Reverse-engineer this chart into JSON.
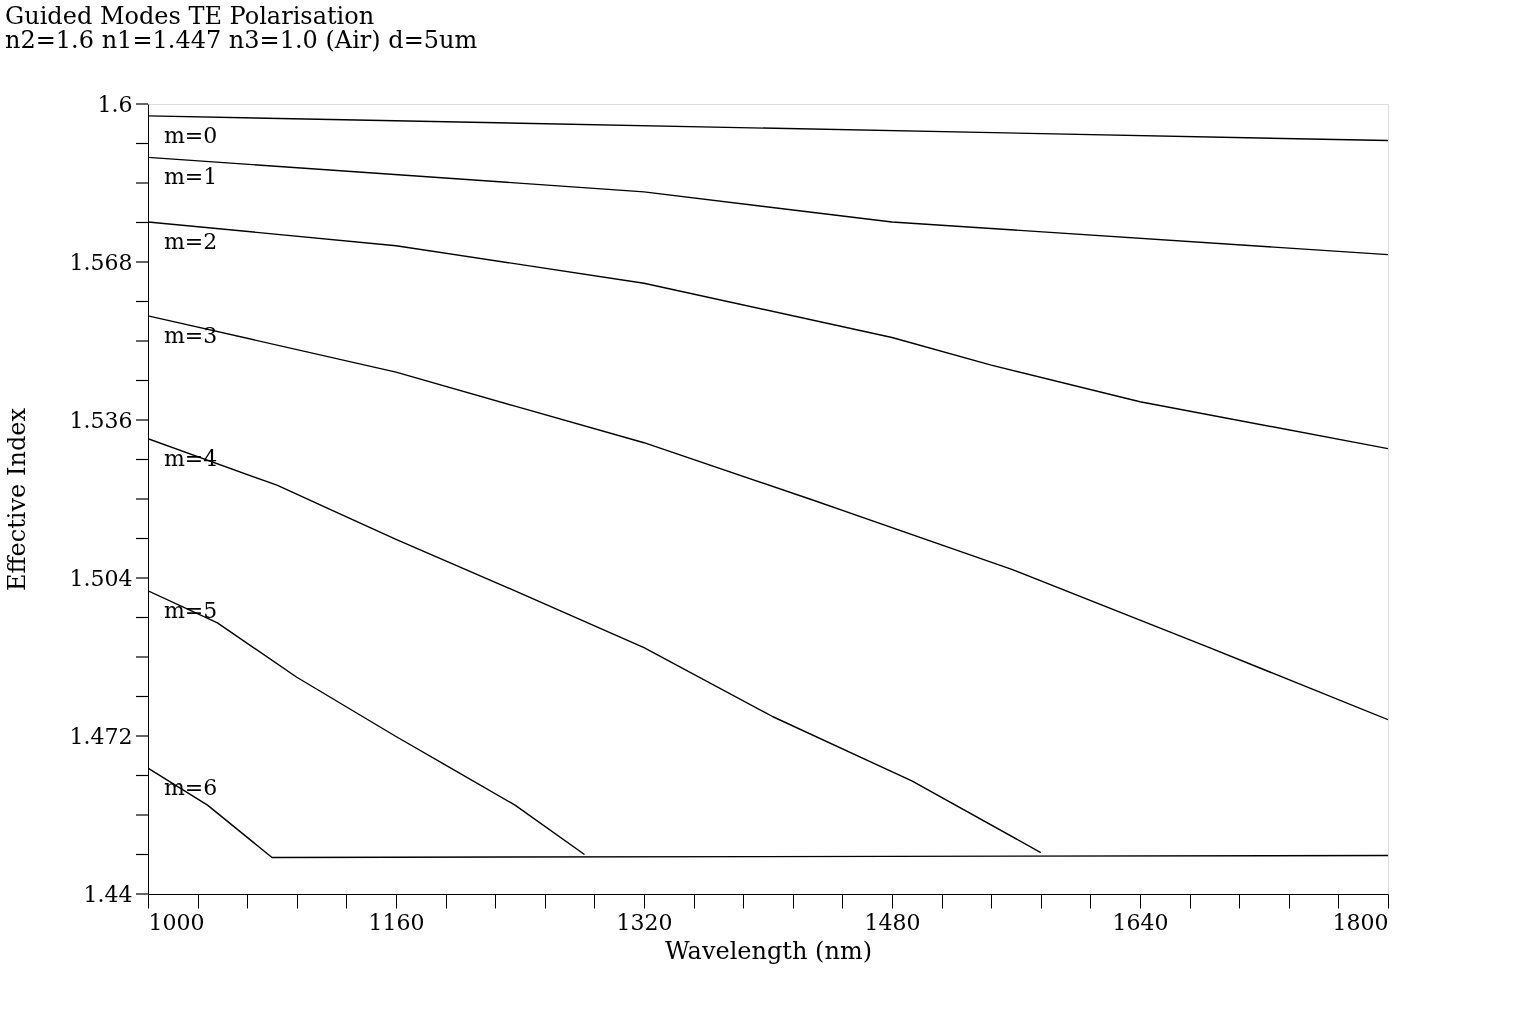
{
  "chart_data": {
    "type": "line",
    "title": "Guided Modes  TE Polarisation",
    "subtitle": "n2=1.6  n1=1.447  n3=1.0 (Air)  d=5um",
    "xlabel": "Wavelength (nm)",
    "ylabel": "Effective Index",
    "xlim": [
      1000,
      1800
    ],
    "ylim": [
      1.44,
      1.6
    ],
    "xticks": [
      1000,
      {
        "value": 1032,
        "label": null
      },
      {
        "value": 1064,
        "label": null
      },
      {
        "value": 1096,
        "label": null
      },
      {
        "value": 1128,
        "label": null
      },
      1160,
      {
        "value": 1192,
        "label": null
      },
      {
        "value": 1224,
        "label": null
      },
      {
        "value": 1256,
        "label": null
      },
      {
        "value": 1288,
        "label": null
      },
      1320,
      {
        "value": 1352,
        "label": null
      },
      {
        "value": 1384,
        "label": null
      },
      {
        "value": 1416,
        "label": null
      },
      {
        "value": 1448,
        "label": null
      },
      1480,
      {
        "value": 1512,
        "label": null
      },
      {
        "value": 1544,
        "label": null
      },
      {
        "value": 1576,
        "label": null
      },
      {
        "value": 1608,
        "label": null
      },
      1640,
      {
        "value": 1672,
        "label": null
      },
      {
        "value": 1704,
        "label": null
      },
      {
        "value": 1736,
        "label": null
      },
      {
        "value": 1768,
        "label": null
      },
      1800
    ],
    "yticks": [
      1.44,
      {
        "value": 1.448,
        "label": null
      },
      {
        "value": 1.456,
        "label": null
      },
      {
        "value": 1.464,
        "label": null
      },
      1.472,
      {
        "value": 1.48,
        "label": null
      },
      {
        "value": 1.488,
        "label": null
      },
      {
        "value": 1.496,
        "label": null
      },
      1.504,
      {
        "value": 1.512,
        "label": null
      },
      {
        "value": 1.52,
        "label": null
      },
      {
        "value": 1.528,
        "label": null
      },
      1.536,
      {
        "value": 1.544,
        "label": null
      },
      {
        "value": 1.552,
        "label": null
      },
      {
        "value": 1.56,
        "label": null
      },
      1.568,
      {
        "value": 1.576,
        "label": null
      },
      {
        "value": 1.584,
        "label": null
      },
      {
        "value": 1.592,
        "label": null
      },
      1.6
    ],
    "grid": false,
    "marker": "none",
    "line_style": "solid",
    "series": [
      {
        "name": "m=0",
        "color": "#000000",
        "x": [
          1000,
          1800
        ],
        "values": [
          1.5976,
          1.5926
        ]
      },
      {
        "name": "m=1",
        "color": "#000000",
        "x": [
          1000,
          1320,
          1480,
          1800
        ],
        "values": [
          1.5892,
          1.5822,
          1.5761,
          1.5695
        ]
      },
      {
        "name": "m=2",
        "color": "#000000",
        "x": [
          1000,
          1160,
          1320,
          1480,
          1544,
          1640,
          1800
        ],
        "values": [
          1.5761,
          1.5713,
          1.5637,
          1.5527,
          1.5471,
          1.5397,
          1.5302
        ]
      },
      {
        "name": "m=3",
        "color": "#000000",
        "x": [
          1000,
          1160,
          1236.8,
          1320,
          1428.8,
          1556.8,
          1684.8,
          1800
        ],
        "values": [
          1.5571,
          1.5457,
          1.5388,
          1.5314,
          1.5198,
          1.5058,
          1.4899,
          1.4753
        ]
      },
      {
        "name": "m=4",
        "color": "#000000",
        "x": [
          1000,
          1083.2,
          1160,
          1236.8,
          1320,
          1403.2,
          1492.8,
          1576
        ],
        "values": [
          1.5322,
          1.5228,
          1.5118,
          1.5014,
          1.4899,
          1.4759,
          1.4629,
          1.4484
        ]
      },
      {
        "name": "m=5",
        "color": "#000000",
        "x": [
          1000,
          1044.8,
          1096,
          1160,
          1236.8,
          1281.6
        ],
        "values": [
          1.5014,
          1.4949,
          1.4839,
          1.4719,
          1.458,
          1.448
        ]
      },
      {
        "name": "m=6",
        "color": "#000000",
        "x": [
          1000,
          1038.4,
          1080,
          1800
        ],
        "values": [
          1.4655,
          1.458,
          1.4474,
          1.4478
        ]
      }
    ]
  }
}
